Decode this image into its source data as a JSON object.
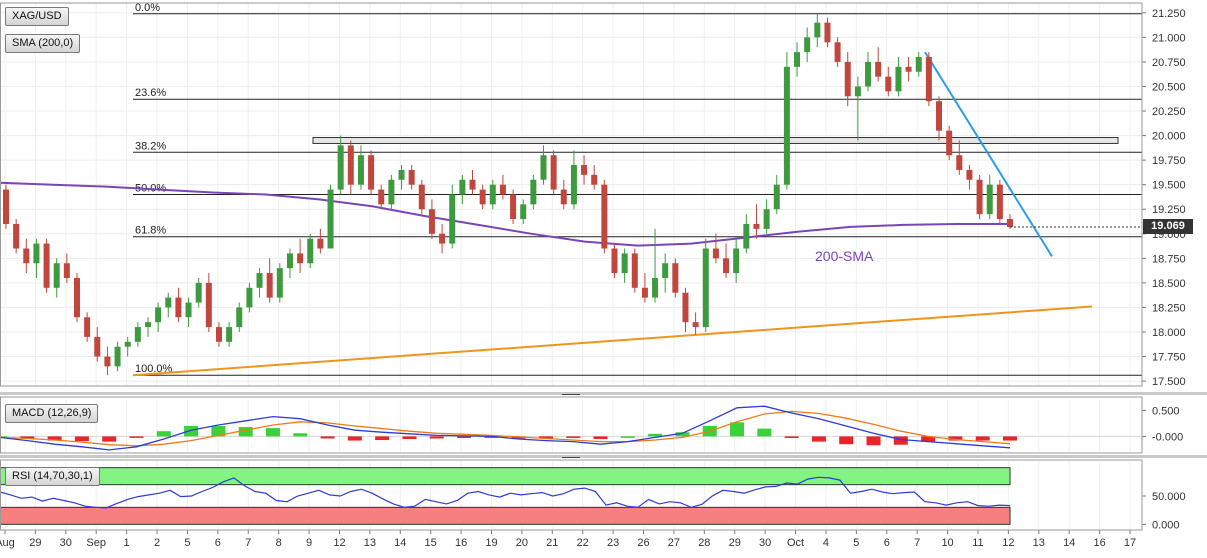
{
  "instrument": "XAG/USD",
  "chart_data": [
    {
      "type": "candlestick",
      "title": "XAG/USD",
      "overlay_label": "SMA (200,0)",
      "current_price": "19.069",
      "current_price_value": 19.069,
      "colors": {
        "up": "#3e9a3e",
        "down": "#c0463e",
        "sma": "#7a45b8",
        "trendline": "#f0941c",
        "resistance_line": "#2a9de8"
      },
      "y_ticks": [
        "17.500",
        "17.750",
        "18.000",
        "18.250",
        "18.500",
        "18.750",
        "19.000",
        "19.250",
        "19.500",
        "19.750",
        "20.000",
        "20.250",
        "20.500",
        "20.750",
        "21.000",
        "21.250"
      ],
      "ylim": [
        17.45,
        21.35
      ],
      "x_ticks": [
        "Aug",
        "29",
        "30",
        "Sep",
        "1",
        "2",
        "5",
        "6",
        "7",
        "8",
        "9",
        "12",
        "13",
        "14",
        "15",
        "16",
        "19",
        "20",
        "21",
        "22",
        "23",
        "26",
        "27",
        "28",
        "29",
        "30",
        "Oct",
        "4",
        "5",
        "6",
        "7",
        "10",
        "11",
        "12",
        "13",
        "14",
        "16",
        "17"
      ],
      "fibonacci": [
        {
          "label": "0.0%",
          "value": 21.24
        },
        {
          "label": "23.6%",
          "value": 20.37
        },
        {
          "label": "38.2%",
          "value": 19.83
        },
        {
          "label": "50.0%",
          "value": 19.4
        },
        {
          "label": "61.8%",
          "value": 18.97
        },
        {
          "label": "100.0%",
          "value": 17.56
        }
      ],
      "resistance_zone": {
        "low": 19.93,
        "high": 19.97
      },
      "trendline_support": {
        "from": 17.56,
        "to": 18.26
      },
      "trendline_resistance": {
        "from": 20.85,
        "to": 18.77
      },
      "annotation": "200-SMA",
      "candles": [
        [
          19.45,
          19.5,
          19.05,
          19.1
        ],
        [
          19.1,
          19.15,
          18.8,
          18.85
        ],
        [
          18.85,
          18.95,
          18.6,
          18.7
        ],
        [
          18.7,
          18.95,
          18.55,
          18.9
        ],
        [
          18.9,
          18.95,
          18.4,
          18.45
        ],
        [
          18.45,
          18.75,
          18.35,
          18.7
        ],
        [
          18.7,
          18.8,
          18.5,
          18.55
        ],
        [
          18.55,
          18.6,
          18.1,
          18.15
        ],
        [
          18.15,
          18.2,
          17.9,
          17.95
        ],
        [
          17.95,
          18.05,
          17.7,
          17.75
        ],
        [
          17.75,
          17.85,
          17.56,
          17.65
        ],
        [
          17.65,
          17.9,
          17.6,
          17.85
        ],
        [
          17.85,
          17.95,
          17.75,
          17.9
        ],
        [
          17.9,
          18.1,
          17.85,
          18.05
        ],
        [
          18.05,
          18.15,
          17.95,
          18.1
        ],
        [
          18.1,
          18.3,
          18.0,
          18.25
        ],
        [
          18.25,
          18.4,
          18.15,
          18.35
        ],
        [
          18.35,
          18.45,
          18.1,
          18.15
        ],
        [
          18.15,
          18.35,
          18.05,
          18.3
        ],
        [
          18.3,
          18.55,
          18.25,
          18.5
        ],
        [
          18.5,
          18.6,
          18.0,
          18.05
        ],
        [
          18.05,
          18.1,
          17.85,
          17.9
        ],
        [
          17.9,
          18.1,
          17.85,
          18.05
        ],
        [
          18.05,
          18.3,
          18.0,
          18.25
        ],
        [
          18.25,
          18.5,
          18.2,
          18.45
        ],
        [
          18.45,
          18.65,
          18.35,
          18.6
        ],
        [
          18.6,
          18.75,
          18.3,
          18.35
        ],
        [
          18.35,
          18.7,
          18.3,
          18.65
        ],
        [
          18.65,
          18.85,
          18.55,
          18.8
        ],
        [
          18.8,
          18.95,
          18.6,
          18.7
        ],
        [
          18.7,
          19.0,
          18.65,
          18.95
        ],
        [
          18.95,
          19.05,
          18.8,
          18.85
        ],
        [
          18.85,
          19.5,
          18.85,
          19.45
        ],
        [
          19.45,
          20.0,
          19.4,
          19.9
        ],
        [
          19.9,
          19.95,
          19.4,
          19.5
        ],
        [
          19.5,
          19.9,
          19.45,
          19.8
        ],
        [
          19.8,
          19.85,
          19.4,
          19.45
        ],
        [
          19.45,
          19.5,
          19.25,
          19.3
        ],
        [
          19.3,
          19.6,
          19.25,
          19.55
        ],
        [
          19.55,
          19.7,
          19.45,
          19.65
        ],
        [
          19.65,
          19.7,
          19.45,
          19.5
        ],
        [
          19.5,
          19.55,
          19.2,
          19.25
        ],
        [
          19.25,
          19.35,
          18.95,
          19.0
        ],
        [
          19.0,
          19.1,
          18.8,
          18.9
        ],
        [
          18.9,
          19.5,
          18.85,
          19.4
        ],
        [
          19.4,
          19.6,
          19.3,
          19.55
        ],
        [
          19.55,
          19.65,
          19.4,
          19.45
        ],
        [
          19.45,
          19.5,
          19.25,
          19.3
        ],
        [
          19.3,
          19.55,
          19.25,
          19.5
        ],
        [
          19.5,
          19.6,
          19.35,
          19.4
        ],
        [
          19.4,
          19.45,
          19.1,
          19.15
        ],
        [
          19.15,
          19.35,
          19.1,
          19.3
        ],
        [
          19.3,
          19.6,
          19.25,
          19.55
        ],
        [
          19.55,
          19.9,
          19.5,
          19.8
        ],
        [
          19.8,
          19.85,
          19.4,
          19.45
        ],
        [
          19.45,
          19.55,
          19.25,
          19.3
        ],
        [
          19.3,
          19.85,
          19.25,
          19.7
        ],
        [
          19.7,
          19.8,
          19.5,
          19.6
        ],
        [
          19.6,
          19.7,
          19.45,
          19.5
        ],
        [
          19.5,
          19.55,
          18.8,
          18.85
        ],
        [
          18.85,
          18.9,
          18.55,
          18.6
        ],
        [
          18.6,
          18.85,
          18.5,
          18.8
        ],
        [
          18.8,
          18.85,
          18.4,
          18.45
        ],
        [
          18.45,
          18.6,
          18.3,
          18.35
        ],
        [
          18.35,
          19.05,
          18.3,
          18.55
        ],
        [
          18.55,
          18.8,
          18.4,
          18.7
        ],
        [
          18.7,
          18.75,
          18.35,
          18.4
        ],
        [
          18.4,
          18.45,
          18.0,
          18.1
        ],
        [
          18.1,
          18.2,
          17.97,
          18.05
        ],
        [
          18.05,
          18.95,
          18.0,
          18.85
        ],
        [
          18.85,
          19.0,
          18.7,
          18.75
        ],
        [
          18.75,
          18.9,
          18.55,
          18.6
        ],
        [
          18.6,
          18.95,
          18.5,
          18.85
        ],
        [
          18.85,
          19.2,
          18.8,
          19.1
        ],
        [
          19.1,
          19.3,
          18.95,
          19.05
        ],
        [
          19.05,
          19.35,
          19.0,
          19.25
        ],
        [
          19.25,
          19.6,
          19.2,
          19.5
        ],
        [
          19.5,
          20.85,
          19.45,
          20.7
        ],
        [
          20.7,
          20.95,
          20.6,
          20.85
        ],
        [
          20.85,
          21.1,
          20.75,
          21.0
        ],
        [
          21.0,
          21.24,
          20.9,
          21.15
        ],
        [
          21.15,
          21.2,
          20.9,
          20.95
        ],
        [
          20.95,
          21.0,
          20.7,
          20.75
        ],
        [
          20.75,
          20.85,
          20.3,
          20.4
        ],
        [
          20.4,
          20.6,
          19.95,
          20.5
        ],
        [
          20.5,
          20.85,
          20.45,
          20.75
        ],
        [
          20.75,
          20.9,
          20.55,
          20.6
        ],
        [
          20.6,
          20.7,
          20.4,
          20.45
        ],
        [
          20.45,
          20.8,
          20.4,
          20.7
        ],
        [
          20.7,
          20.8,
          20.55,
          20.65
        ],
        [
          20.65,
          20.85,
          20.6,
          20.8
        ],
        [
          20.8,
          20.85,
          20.3,
          20.35
        ],
        [
          20.35,
          20.4,
          19.95,
          20.05
        ],
        [
          20.05,
          20.1,
          19.75,
          19.8
        ],
        [
          19.8,
          19.95,
          19.6,
          19.65
        ],
        [
          19.65,
          19.7,
          19.45,
          19.55
        ],
        [
          19.55,
          19.6,
          19.15,
          19.2
        ],
        [
          19.2,
          19.6,
          19.15,
          19.5
        ],
        [
          19.5,
          19.55,
          19.1,
          19.15
        ],
        [
          19.15,
          19.2,
          19.05,
          19.069
        ]
      ],
      "sma": [
        19.52,
        19.5,
        19.48,
        19.45,
        19.42,
        19.4,
        19.35,
        19.28,
        19.18,
        19.09,
        19.0,
        18.92,
        18.88,
        18.9,
        18.96,
        19.02,
        19.07,
        19.09,
        19.1,
        19.1
      ],
      "x_range": [
        0,
        118
      ]
    },
    {
      "type": "macd",
      "label": "MACD (12,26,9)",
      "y_ticks": [
        "0.500",
        "-0.000"
      ],
      "ylim": [
        -0.3,
        0.7
      ],
      "colors": {
        "macd": "#2c3cd8",
        "signal": "#f07a1a",
        "hist_up": "#39d339",
        "hist_down": "#e8262a"
      },
      "macd": [
        -0.02,
        -0.08,
        -0.15,
        -0.2,
        -0.26,
        -0.2,
        -0.05,
        0.12,
        0.22,
        0.3,
        0.38,
        0.34,
        0.22,
        0.12,
        0.08,
        0.05,
        0.02,
        0.01,
        0.0,
        -0.05,
        -0.08,
        -0.1,
        -0.15,
        -0.1,
        -0.02,
        0.06,
        0.3,
        0.55,
        0.58,
        0.45,
        0.34,
        0.2,
        0.06,
        -0.06,
        -0.1,
        -0.14,
        -0.18,
        -0.22
      ],
      "signal": [
        -0.02,
        -0.04,
        -0.07,
        -0.11,
        -0.16,
        -0.18,
        -0.15,
        -0.08,
        0.02,
        0.12,
        0.22,
        0.28,
        0.26,
        0.2,
        0.15,
        0.1,
        0.06,
        0.04,
        0.02,
        -0.01,
        -0.04,
        -0.07,
        -0.1,
        -0.1,
        -0.07,
        -0.02,
        0.1,
        0.28,
        0.43,
        0.48,
        0.44,
        0.35,
        0.23,
        0.1,
        0.0,
        -0.06,
        -0.1,
        -0.14
      ]
    },
    {
      "type": "rsi",
      "label": "RSI (14,70,30,1)",
      "y_ticks": [
        "50.000",
        "0.000"
      ],
      "ylim": [
        -10,
        110
      ],
      "levels": {
        "overbought": 70,
        "oversold": 30
      },
      "colors": {
        "line": "#2c3cd8",
        "overbought_band": "#83f383",
        "oversold_band": "#f67f7f"
      },
      "values": [
        57,
        52,
        46,
        48,
        41,
        46,
        42,
        38,
        32,
        30,
        29,
        37,
        44,
        49,
        52,
        55,
        60,
        49,
        50,
        58,
        65,
        75,
        82,
        68,
        58,
        55,
        42,
        40,
        50,
        55,
        60,
        52,
        50,
        58,
        62,
        55,
        45,
        36,
        30,
        32,
        44,
        40,
        36,
        42,
        55,
        58,
        52,
        48,
        55,
        52,
        54,
        56,
        50,
        54,
        62,
        64,
        58,
        34,
        38,
        32,
        30,
        44,
        36,
        40,
        38,
        30,
        35,
        50,
        60,
        58,
        55,
        61,
        66,
        67,
        73,
        71,
        80,
        83,
        82,
        78,
        55,
        58,
        62,
        57,
        54,
        56,
        57,
        40,
        38,
        34,
        38,
        40,
        33,
        32,
        34,
        33
      ]
    }
  ]
}
